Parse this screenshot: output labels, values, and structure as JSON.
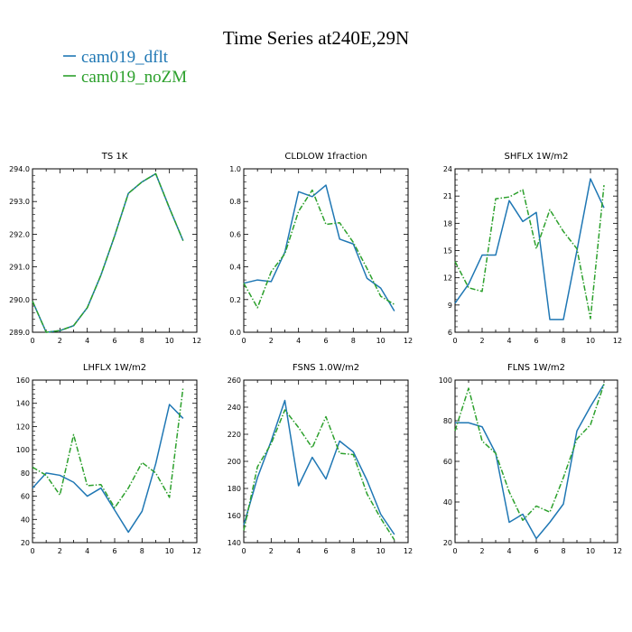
{
  "figure": {
    "title": "Time Series at240E,29N",
    "legend": [
      {
        "label": "cam019_dflt",
        "color": "#1f77b4"
      },
      {
        "label": "cam019_noZM",
        "color": "#2ca02c"
      }
    ]
  },
  "chart_data": [
    {
      "type": "line",
      "title": "TS   1K",
      "x": [
        0,
        1,
        2,
        3,
        4,
        5,
        6,
        7,
        8,
        9,
        10,
        11
      ],
      "xlim": [
        0,
        12
      ],
      "ylim": [
        289.0,
        294.0
      ],
      "xticks": [
        0,
        2,
        4,
        6,
        8,
        10,
        12
      ],
      "xtick_labels": [
        "0",
        "2",
        "4",
        "6",
        "8",
        "10",
        "12"
      ],
      "yticks": [
        289.0,
        290.0,
        291.0,
        292.0,
        293.0,
        294.0
      ],
      "ytick_labels": [
        "289.0",
        "290.0",
        "291.0",
        "292.0",
        "293.0",
        "294.0"
      ],
      "series": [
        {
          "name": "cam019_dflt",
          "values": [
            289.95,
            289.0,
            289.05,
            289.2,
            289.75,
            290.75,
            291.95,
            293.25,
            293.6,
            293.85,
            292.8,
            291.8
          ]
        },
        {
          "name": "cam019_noZM",
          "values": [
            289.95,
            289.0,
            289.05,
            289.2,
            289.75,
            290.75,
            291.95,
            293.25,
            293.6,
            293.85,
            292.8,
            291.8
          ]
        }
      ]
    },
    {
      "type": "line",
      "title": "CLDLOW   1fraction",
      "x": [
        0,
        1,
        2,
        3,
        4,
        5,
        6,
        7,
        8,
        9,
        10,
        11
      ],
      "xlim": [
        0,
        12
      ],
      "ylim": [
        0.0,
        1.0
      ],
      "xticks": [
        0,
        2,
        4,
        6,
        8,
        10,
        12
      ],
      "xtick_labels": [
        "0",
        "2",
        "4",
        "6",
        "8",
        "10",
        "12"
      ],
      "yticks": [
        0.0,
        0.2,
        0.4,
        0.6,
        0.8,
        1.0
      ],
      "ytick_labels": [
        "0.0",
        "0.2",
        "0.4",
        "0.6",
        "0.8",
        "1.0"
      ],
      "series": [
        {
          "name": "cam019_dflt",
          "values": [
            0.3,
            0.32,
            0.31,
            0.49,
            0.86,
            0.83,
            0.9,
            0.57,
            0.54,
            0.33,
            0.27,
            0.13
          ]
        },
        {
          "name": "cam019_noZM",
          "values": [
            0.3,
            0.15,
            0.37,
            0.48,
            0.74,
            0.87,
            0.66,
            0.67,
            0.55,
            0.39,
            0.22,
            0.17
          ]
        }
      ]
    },
    {
      "type": "line",
      "title": "SHFLX   1W/m2",
      "x": [
        0,
        1,
        2,
        3,
        4,
        5,
        6,
        7,
        8,
        9,
        10,
        11
      ],
      "xlim": [
        0,
        12
      ],
      "ylim": [
        6,
        24
      ],
      "xticks": [
        0,
        2,
        4,
        6,
        8,
        10,
        12
      ],
      "xtick_labels": [
        "0",
        "2",
        "4",
        "6",
        "8",
        "10",
        "12"
      ],
      "yticks": [
        6,
        9,
        12,
        15,
        18,
        21,
        24
      ],
      "ytick_labels": [
        "6",
        "9",
        "12",
        "15",
        "18",
        "21",
        "24"
      ],
      "series": [
        {
          "name": "cam019_dflt",
          "values": [
            9.2,
            11.3,
            14.5,
            14.5,
            20.5,
            18.2,
            19.2,
            7.4,
            7.4,
            15.0,
            22.9,
            19.7
          ]
        },
        {
          "name": "cam019_noZM",
          "values": [
            13.8,
            10.9,
            10.5,
            20.7,
            20.9,
            21.7,
            15.2,
            19.5,
            17.1,
            15.2,
            7.5,
            22.2
          ]
        }
      ]
    },
    {
      "type": "line",
      "title": "LHFLX   1W/m2",
      "x": [
        0,
        1,
        2,
        3,
        4,
        5,
        6,
        7,
        8,
        9,
        10,
        11
      ],
      "xlim": [
        0,
        12
      ],
      "ylim": [
        20,
        160
      ],
      "xticks": [
        0,
        2,
        4,
        6,
        8,
        10,
        12
      ],
      "xtick_labels": [
        "0",
        "2",
        "4",
        "6",
        "8",
        "10",
        "12"
      ],
      "yticks": [
        20,
        40,
        60,
        80,
        100,
        120,
        140,
        160
      ],
      "ytick_labels": [
        "20",
        "40",
        "60",
        "80",
        "100",
        "120",
        "140",
        "160"
      ],
      "series": [
        {
          "name": "cam019_dflt",
          "values": [
            67,
            80,
            78,
            72,
            60,
            67,
            48,
            29,
            47,
            88,
            139,
            127
          ]
        },
        {
          "name": "cam019_noZM",
          "values": [
            85,
            78,
            61,
            113,
            69,
            70,
            50,
            67,
            89,
            80,
            59,
            154
          ]
        }
      ]
    },
    {
      "type": "line",
      "title": "FSNS   1.0W/m2",
      "x": [
        0,
        1,
        2,
        3,
        4,
        5,
        6,
        7,
        8,
        9,
        10,
        11
      ],
      "xlim": [
        0,
        12
      ],
      "ylim": [
        140,
        260
      ],
      "xticks": [
        0,
        2,
        4,
        6,
        8,
        10,
        12
      ],
      "xtick_labels": [
        "0",
        "2",
        "4",
        "6",
        "8",
        "10",
        "12"
      ],
      "yticks": [
        140,
        160,
        180,
        200,
        220,
        240,
        260
      ],
      "ytick_labels": [
        "140",
        "160",
        "180",
        "200",
        "220",
        "240",
        "260"
      ],
      "series": [
        {
          "name": "cam019_dflt",
          "values": [
            153,
            188,
            215,
            245,
            182,
            203,
            187,
            215,
            207,
            186,
            161,
            146
          ]
        },
        {
          "name": "cam019_noZM",
          "values": [
            149,
            196,
            213,
            238,
            225,
            210,
            233,
            206,
            205,
            176,
            158,
            142
          ]
        }
      ]
    },
    {
      "type": "line",
      "title": "FLNS   1W/m2",
      "x": [
        0,
        1,
        2,
        3,
        4,
        5,
        6,
        7,
        8,
        9,
        10,
        11
      ],
      "xlim": [
        0,
        12
      ],
      "ylim": [
        20,
        100
      ],
      "xticks": [
        0,
        2,
        4,
        6,
        8,
        10,
        12
      ],
      "xtick_labels": [
        "0",
        "2",
        "4",
        "6",
        "8",
        "10",
        "12"
      ],
      "yticks": [
        20,
        40,
        60,
        80,
        100
      ],
      "ytick_labels": [
        "20",
        "40",
        "60",
        "80",
        "100"
      ],
      "series": [
        {
          "name": "cam019_dflt",
          "values": [
            79,
            79,
            77,
            64,
            30,
            34,
            22,
            30,
            39,
            75,
            87,
            98
          ]
        },
        {
          "name": "cam019_noZM",
          "values": [
            75,
            96,
            70,
            64,
            45,
            31,
            38,
            35,
            52,
            71,
            78,
            98
          ]
        }
      ]
    }
  ]
}
